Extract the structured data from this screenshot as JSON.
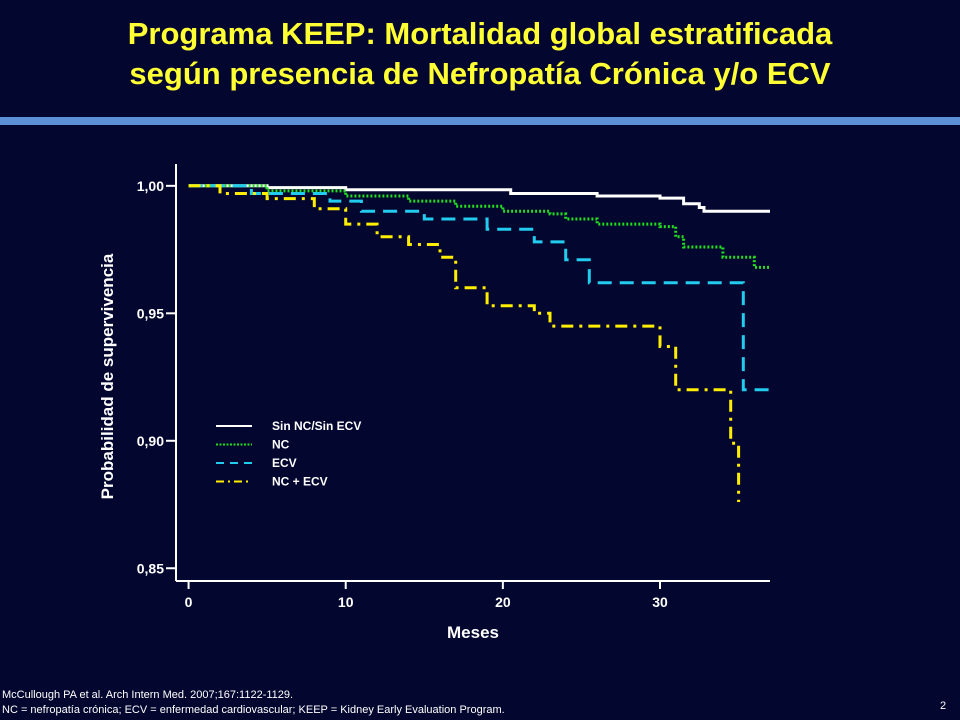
{
  "slide": {
    "title_line1": "Programa KEEP: Mortalidad global estratificada",
    "title_line2": "según presencia de Nefropatía Crónica y/o ECV",
    "reference": "McCullough PA et al. Arch Intern Med. 2007;167:1122-1129.",
    "abbreviations": "NC = nefropatía crónica; ECV = enfermedad cardiovascular; KEEP = Kidney Early Evaluation Program.",
    "page_number": "2",
    "accent_color": "#ffff33",
    "bar_color": "#5b8fd6",
    "background_color": "#03062e"
  },
  "chart_data": {
    "type": "line",
    "subtype": "kaplan-meier step curve",
    "xlabel": "Meses",
    "ylabel": "Probabilidad de supervivencia",
    "xlim": [
      -0.8,
      37
    ],
    "ylim": [
      0.845,
      1.007
    ],
    "x_ticks": [
      0,
      10,
      20,
      30
    ],
    "x_tick_labels": [
      "0",
      "10",
      "20",
      "30"
    ],
    "y_ticks": [
      1.0,
      0.95,
      0.9,
      0.85
    ],
    "y_tick_labels": [
      "1,00",
      "0,95",
      "0,90",
      "0,85"
    ],
    "grid": false,
    "legend_position": "inside lower-left",
    "series": [
      {
        "name": "Sin NC/Sin ECV",
        "color": "#ffffff",
        "dash": "solid",
        "points": [
          [
            0,
            1.0
          ],
          [
            5,
            1.0
          ],
          [
            5,
            0.9993
          ],
          [
            10,
            0.9993
          ],
          [
            10,
            0.9985
          ],
          [
            20.5,
            0.9985
          ],
          [
            20.5,
            0.997
          ],
          [
            26,
            0.997
          ],
          [
            26,
            0.996
          ],
          [
            30,
            0.996
          ],
          [
            30,
            0.9952
          ],
          [
            31.5,
            0.9952
          ],
          [
            31.5,
            0.993
          ],
          [
            32.5,
            0.993
          ],
          [
            32.5,
            0.9915
          ],
          [
            32.8,
            0.9915
          ],
          [
            32.8,
            0.99
          ],
          [
            37,
            0.99
          ]
        ]
      },
      {
        "name": "NC",
        "color": "#22dd22",
        "dash": "dotted",
        "points": [
          [
            0,
            1.0
          ],
          [
            5,
            1.0
          ],
          [
            5,
            0.998
          ],
          [
            10,
            0.998
          ],
          [
            10,
            0.996
          ],
          [
            14,
            0.996
          ],
          [
            14,
            0.994
          ],
          [
            17,
            0.994
          ],
          [
            17,
            0.992
          ],
          [
            20,
            0.992
          ],
          [
            20,
            0.99
          ],
          [
            23,
            0.99
          ],
          [
            23,
            0.989
          ],
          [
            24,
            0.989
          ],
          [
            24,
            0.987
          ],
          [
            26,
            0.987
          ],
          [
            26,
            0.985
          ],
          [
            30,
            0.985
          ],
          [
            30,
            0.984
          ],
          [
            31,
            0.984
          ],
          [
            31,
            0.98
          ],
          [
            31.5,
            0.98
          ],
          [
            31.5,
            0.976
          ],
          [
            34,
            0.976
          ],
          [
            34,
            0.972
          ],
          [
            36,
            0.972
          ],
          [
            36,
            0.968
          ],
          [
            37,
            0.968
          ]
        ]
      },
      {
        "name": "ECV",
        "color": "#22ccee",
        "dash": "dashed",
        "points": [
          [
            0,
            1.0
          ],
          [
            4,
            1.0
          ],
          [
            4,
            0.997
          ],
          [
            9,
            0.997
          ],
          [
            9,
            0.994
          ],
          [
            11,
            0.994
          ],
          [
            11,
            0.99
          ],
          [
            15,
            0.99
          ],
          [
            15,
            0.987
          ],
          [
            19,
            0.987
          ],
          [
            19,
            0.983
          ],
          [
            22,
            0.983
          ],
          [
            22,
            0.978
          ],
          [
            24,
            0.978
          ],
          [
            24,
            0.971
          ],
          [
            25.5,
            0.971
          ],
          [
            25.5,
            0.962
          ],
          [
            35.3,
            0.962
          ],
          [
            35.3,
            0.92
          ],
          [
            37,
            0.92
          ]
        ]
      },
      {
        "name": "NC + ECV",
        "color": "#ffee00",
        "dash": "dashdot",
        "points": [
          [
            0,
            1.0
          ],
          [
            2,
            1.0
          ],
          [
            2,
            0.997
          ],
          [
            5,
            0.997
          ],
          [
            5,
            0.995
          ],
          [
            8,
            0.995
          ],
          [
            8,
            0.991
          ],
          [
            10,
            0.991
          ],
          [
            10,
            0.985
          ],
          [
            12,
            0.985
          ],
          [
            12,
            0.98
          ],
          [
            14,
            0.98
          ],
          [
            14,
            0.977
          ],
          [
            16,
            0.977
          ],
          [
            16,
            0.972
          ],
          [
            17,
            0.972
          ],
          [
            17,
            0.96
          ],
          [
            19,
            0.96
          ],
          [
            19,
            0.953
          ],
          [
            22,
            0.953
          ],
          [
            22,
            0.95
          ],
          [
            23,
            0.95
          ],
          [
            23,
            0.945
          ],
          [
            30,
            0.945
          ],
          [
            30,
            0.937
          ],
          [
            31,
            0.937
          ],
          [
            31,
            0.92
          ],
          [
            34.5,
            0.92
          ],
          [
            34.5,
            0.899
          ],
          [
            35,
            0.899
          ],
          [
            35,
            0.876
          ]
        ]
      }
    ]
  }
}
